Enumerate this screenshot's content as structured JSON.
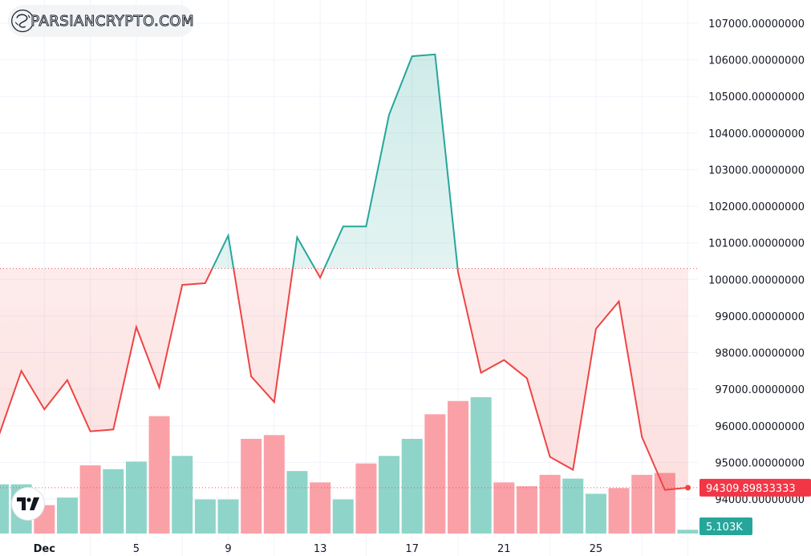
{
  "watermark": {
    "text": "PARSIANCRYPTO.COM"
  },
  "tv_logo": {
    "icon": "tradingview-logo-icon"
  },
  "last_price_label": "94309.89833333",
  "last_volume_label": "5.103K",
  "colors": {
    "up": "#26a69a",
    "down": "#ef4444",
    "vol_up": "#8fd4c9",
    "vol_down": "#faa1a8",
    "grid": "#f0f3fa",
    "baseline": "#ef5350"
  },
  "chart_data": {
    "type": "line",
    "baseline_value": 100300,
    "y_ticks": [
      "107000.00000000",
      "106000.00000000",
      "105000.00000000",
      "104000.00000000",
      "103000.00000000",
      "102000.00000000",
      "101000.00000000",
      "100000.00000000",
      "99000.00000000",
      "98000.00000000",
      "97000.00000000",
      "96000.00000000",
      "95000.00000000",
      "94000.00000000"
    ],
    "ylim": [
      93650,
      107550
    ],
    "x_ticks": [
      {
        "label": "Dec",
        "day": 1
      },
      {
        "label": "5",
        "day": 5
      },
      {
        "label": "9",
        "day": 9
      },
      {
        "label": "13",
        "day": 13
      },
      {
        "label": "17",
        "day": 17
      },
      {
        "label": "21",
        "day": 21
      },
      {
        "label": "25",
        "day": 25
      }
    ],
    "x": [
      "Nov 29",
      "Nov 30",
      "Dec 1",
      "Dec 2",
      "Dec 3",
      "Dec 4",
      "Dec 5",
      "Dec 6",
      "Dec 7",
      "Dec 8",
      "Dec 9",
      "Dec 10",
      "Dec 11",
      "Dec 12",
      "Dec 13",
      "Dec 14",
      "Dec 15",
      "Dec 16",
      "Dec 17",
      "Dec 18",
      "Dec 19",
      "Dec 20",
      "Dec 21",
      "Dec 22",
      "Dec 23",
      "Dec 24",
      "Dec 25",
      "Dec 26",
      "Dec 27",
      "Dec 28",
      "Dec 29"
    ],
    "close": [
      95700,
      97500,
      96450,
      97250,
      95850,
      95900,
      98700,
      97050,
      99850,
      99900,
      101200,
      97350,
      96650,
      101150,
      100050,
      101450,
      101450,
      104500,
      106100,
      106150,
      100200,
      97450,
      97800,
      97300,
      95150,
      94800,
      98650,
      99400,
      95700,
      94250,
      94309.9
    ],
    "volume": [
      2.6,
      2.6,
      1.5,
      1.9,
      3.6,
      3.4,
      3.8,
      6.2,
      4.1,
      1.8,
      1.8,
      5.0,
      5.2,
      3.3,
      2.7,
      1.8,
      3.7,
      4.1,
      5.0,
      6.3,
      7.0,
      7.2,
      2.7,
      2.5,
      3.1,
      2.9,
      2.1,
      2.4,
      3.1,
      3.2,
      0.2
    ],
    "volume_up": [
      true,
      true,
      false,
      true,
      false,
      true,
      true,
      false,
      true,
      true,
      true,
      false,
      false,
      true,
      false,
      true,
      false,
      true,
      true,
      false,
      false,
      true,
      false,
      false,
      false,
      true,
      true,
      false,
      false,
      false,
      true
    ]
  }
}
